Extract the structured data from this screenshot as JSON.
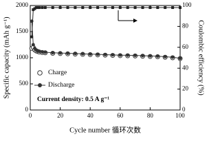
{
  "chart_data": {
    "type": "line",
    "x_label": "Cycle number 循环次数",
    "y_label": "Specific capacity (mAh g⁻¹)",
    "y2_label": "Coulombic efficiency (%)",
    "annotation": "Current density: 0.5 A g⁻¹",
    "x": [
      1,
      2,
      3,
      4,
      5,
      6,
      8,
      10,
      15,
      20,
      25,
      30,
      35,
      40,
      45,
      50,
      55,
      60,
      65,
      70,
      75,
      80,
      85,
      90,
      95,
      100
    ],
    "series": [
      {
        "name": "Charge",
        "color": "#333333",
        "marker": "open-circle",
        "values": [
          1180,
          1200,
          1150,
          1130,
          1120,
          1110,
          1100,
          1095,
          1085,
          1080,
          1075,
          1070,
          1065,
          1060,
          1055,
          1050,
          1045,
          1040,
          1038,
          1035,
          1030,
          1025,
          1020,
          1010,
          1000,
          985
        ]
      },
      {
        "name": "Discharge",
        "color": "#333333",
        "marker": "filled-circle-line",
        "values": [
          1700,
          1250,
          1180,
          1150,
          1130,
          1120,
          1110,
          1105,
          1095,
          1090,
          1085,
          1080,
          1075,
          1070,
          1065,
          1060,
          1055,
          1050,
          1048,
          1045,
          1040,
          1035,
          1030,
          1020,
          1010,
          990
        ]
      },
      {
        "color": "#222222",
        "marker": "square-line",
        "axis": "y2",
        "values": [
          70,
          96,
          97,
          98,
          98,
          98,
          98,
          98,
          98,
          98,
          98,
          98,
          98,
          98,
          98,
          98,
          98,
          98,
          98,
          98,
          98,
          98,
          98,
          98,
          98,
          98
        ]
      }
    ],
    "xlim": [
      0,
      100
    ],
    "xticks": [
      0,
      20,
      40,
      60,
      80,
      100
    ],
    "ylim": [
      0,
      2000
    ],
    "yticks": [
      0,
      500,
      1000,
      1500,
      2000
    ],
    "y2lim": [
      0,
      100
    ],
    "y2ticks": [
      0,
      20,
      40,
      60,
      80,
      100
    ]
  }
}
